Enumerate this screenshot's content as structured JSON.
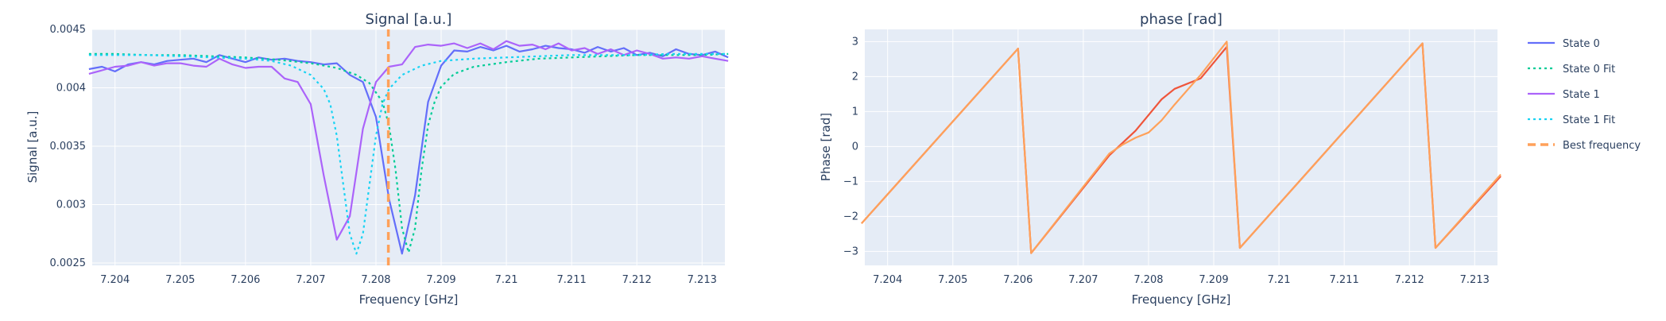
{
  "chart_data": [
    {
      "type": "line",
      "title": "Signal [a.u.]",
      "xlabel": "Frequency [GHz]",
      "ylabel": "Signal [a.u.]",
      "xlim": [
        7.20365,
        7.21335
      ],
      "ylim": [
        0.00248,
        0.0045
      ],
      "xticks": [
        7.204,
        7.205,
        7.206,
        7.207,
        7.208,
        7.209,
        7.21,
        7.211,
        7.212,
        7.213
      ],
      "xtick_labels": [
        "7.204",
        "7.205",
        "7.206",
        "7.207",
        "7.208",
        "7.209",
        "7.21",
        "7.211",
        "7.212",
        "7.213"
      ],
      "yticks": [
        0.0025,
        0.003,
        0.0035,
        0.004,
        0.0045
      ],
      "ytick_labels": [
        "0.0025",
        "0.003",
        "0.0035",
        "0.004",
        "0.0045"
      ],
      "grid": true,
      "series": [
        {
          "name": "State 0",
          "color": "#636efa",
          "style": "solid",
          "x": [
            7.2036,
            7.2038,
            7.204,
            7.2042,
            7.2044,
            7.2046,
            7.2048,
            7.205,
            7.2052,
            7.2054,
            7.2056,
            7.2058,
            7.206,
            7.2062,
            7.2064,
            7.2066,
            7.2068,
            7.207,
            7.2072,
            7.2074,
            7.2076,
            7.2078,
            7.208,
            7.2082,
            7.2084,
            7.2086,
            7.2088,
            7.209,
            7.2092,
            7.2094,
            7.2096,
            7.2098,
            7.21,
            7.2102,
            7.2104,
            7.2106,
            7.2108,
            7.211,
            7.2112,
            7.2114,
            7.2116,
            7.2118,
            7.212,
            7.2122,
            7.2124,
            7.2126,
            7.2128,
            7.213,
            7.2132,
            7.2134
          ],
          "y": [
            0.00416,
            0.00418,
            0.00414,
            0.0042,
            0.00422,
            0.0042,
            0.00423,
            0.00424,
            0.00425,
            0.00422,
            0.00428,
            0.00425,
            0.00422,
            0.00426,
            0.00424,
            0.00425,
            0.00423,
            0.00422,
            0.0042,
            0.00421,
            0.00411,
            0.00405,
            0.00375,
            0.00305,
            0.00258,
            0.00308,
            0.00388,
            0.00419,
            0.00432,
            0.00431,
            0.00435,
            0.00432,
            0.00436,
            0.00431,
            0.00433,
            0.00436,
            0.00434,
            0.00433,
            0.0043,
            0.00435,
            0.00431,
            0.00434,
            0.00428,
            0.0043,
            0.00427,
            0.00433,
            0.00429,
            0.00428,
            0.00431,
            0.00426
          ]
        },
        {
          "name": "State 0 Fit",
          "color": "#00cc96",
          "style": "dot",
          "x": [
            7.2036,
            7.204,
            7.2045,
            7.205,
            7.2055,
            7.206,
            7.2065,
            7.207,
            7.2074,
            7.2077,
            7.2079,
            7.2081,
            7.2082,
            7.2083,
            7.2084,
            7.2085,
            7.2086,
            7.2087,
            7.2088,
            7.2089,
            7.209,
            7.2092,
            7.2095,
            7.21,
            7.2105,
            7.211,
            7.2115,
            7.212,
            7.2125,
            7.213,
            7.2134
          ],
          "y": [
            0.00429,
            0.00429,
            0.00428,
            0.00428,
            0.00427,
            0.00426,
            0.00424,
            0.00421,
            0.00417,
            0.00411,
            0.00404,
            0.00388,
            0.00368,
            0.0033,
            0.0028,
            0.00259,
            0.0028,
            0.0033,
            0.00368,
            0.00388,
            0.00401,
            0.00412,
            0.00418,
            0.00422,
            0.00425,
            0.00426,
            0.00427,
            0.00428,
            0.00428,
            0.00428,
            0.00429
          ]
        },
        {
          "name": "State 1",
          "color": "#ab63fa",
          "style": "solid",
          "x": [
            7.2036,
            7.2038,
            7.204,
            7.2042,
            7.2044,
            7.2046,
            7.2048,
            7.205,
            7.2052,
            7.2054,
            7.2056,
            7.2058,
            7.206,
            7.2062,
            7.2064,
            7.2066,
            7.2068,
            7.207,
            7.2072,
            7.2074,
            7.2076,
            7.2078,
            7.208,
            7.2082,
            7.2084,
            7.2086,
            7.2088,
            7.209,
            7.2092,
            7.2094,
            7.2096,
            7.2098,
            7.21,
            7.2102,
            7.2104,
            7.2106,
            7.2108,
            7.211,
            7.2112,
            7.2114,
            7.2116,
            7.2118,
            7.212,
            7.2122,
            7.2124,
            7.2126,
            7.2128,
            7.213,
            7.2132,
            7.2134
          ],
          "y": [
            0.00412,
            0.00415,
            0.00418,
            0.00419,
            0.00422,
            0.00419,
            0.00421,
            0.00421,
            0.00419,
            0.00418,
            0.00425,
            0.0042,
            0.00417,
            0.00418,
            0.00418,
            0.00408,
            0.00405,
            0.00386,
            0.00325,
            0.0027,
            0.0029,
            0.00365,
            0.00405,
            0.00418,
            0.0042,
            0.00435,
            0.00437,
            0.00436,
            0.00438,
            0.00434,
            0.00438,
            0.00433,
            0.0044,
            0.00436,
            0.00437,
            0.00433,
            0.00438,
            0.00432,
            0.00434,
            0.00429,
            0.00433,
            0.00428,
            0.00432,
            0.00429,
            0.00425,
            0.00426,
            0.00425,
            0.00427,
            0.00425,
            0.00423
          ]
        },
        {
          "name": "State 1 Fit",
          "color": "#19d3f3",
          "style": "dot",
          "x": [
            7.2036,
            7.204,
            7.2045,
            7.205,
            7.2055,
            7.206,
            7.2064,
            7.2067,
            7.207,
            7.2072,
            7.2073,
            7.2074,
            7.2075,
            7.2076,
            7.2077,
            7.2078,
            7.2079,
            7.208,
            7.2081,
            7.2082,
            7.2084,
            7.2087,
            7.209,
            7.2095,
            7.21,
            7.2105,
            7.211,
            7.2115,
            7.212,
            7.2125,
            7.213,
            7.2134
          ],
          "y": [
            0.00428,
            0.00428,
            0.00428,
            0.00427,
            0.00426,
            0.00425,
            0.00423,
            0.00419,
            0.00411,
            0.00399,
            0.00386,
            0.00359,
            0.00317,
            0.00275,
            0.00258,
            0.00275,
            0.00317,
            0.00359,
            0.00386,
            0.00399,
            0.00411,
            0.00419,
            0.00423,
            0.00425,
            0.00426,
            0.00427,
            0.00428,
            0.00428,
            0.00428,
            0.00429,
            0.00429,
            0.00429
          ]
        },
        {
          "name": "Best frequency",
          "color": "#ffa15a",
          "style": "dash",
          "x": [
            7.20819,
            7.20819
          ],
          "y": [
            0.00248,
            0.0045
          ]
        }
      ]
    },
    {
      "type": "line",
      "title": "phase [rad]",
      "xlabel": "Frequency [GHz]",
      "ylabel": "Phase [rad]",
      "xlim": [
        7.20365,
        7.21335
      ],
      "ylim": [
        -3.4,
        3.35
      ],
      "xticks": [
        7.204,
        7.205,
        7.206,
        7.207,
        7.208,
        7.209,
        7.21,
        7.211,
        7.212,
        7.213
      ],
      "xtick_labels": [
        "7.204",
        "7.205",
        "7.206",
        "7.207",
        "7.208",
        "7.209",
        "7.21",
        "7.211",
        "7.212",
        "7.213"
      ],
      "yticks": [
        -3,
        -2,
        -1,
        0,
        1,
        2,
        3
      ],
      "ytick_labels": [
        "−3",
        "−2",
        "−1",
        "0",
        "1",
        "2",
        "3"
      ],
      "grid": true,
      "series": [
        {
          "name": "State 0",
          "color": "#ef553b",
          "style": "solid",
          "x": [
            7.2036,
            7.206,
            7.2062,
            7.2074,
            7.2078,
            7.208,
            7.2082,
            7.2084,
            7.2088,
            7.2092,
            7.2094,
            7.2122,
            7.2124,
            7.2134
          ],
          "y": [
            -2.2,
            2.8,
            -3.05,
            -0.25,
            0.45,
            0.9,
            1.35,
            1.65,
            1.95,
            2.85,
            -2.9,
            2.95,
            -2.9,
            -0.85
          ]
        },
        {
          "name": "State 1",
          "color": "#ffa15a",
          "style": "solid",
          "x": [
            7.2036,
            7.206,
            7.2062,
            7.2074,
            7.2076,
            7.2078,
            7.208,
            7.2082,
            7.2084,
            7.2088,
            7.2092,
            7.2094,
            7.2122,
            7.2124,
            7.2134
          ],
          "y": [
            -2.2,
            2.8,
            -3.05,
            -0.2,
            0.05,
            0.25,
            0.4,
            0.75,
            1.2,
            2.05,
            3.0,
            -2.9,
            2.95,
            -2.9,
            -0.8
          ]
        }
      ]
    }
  ],
  "legend": {
    "placement": "right",
    "items": [
      {
        "label": "State 0",
        "color": "#636efa",
        "style": "solid"
      },
      {
        "label": "State 0 Fit",
        "color": "#00cc96",
        "style": "dot"
      },
      {
        "label": "State 1",
        "color": "#ab63fa",
        "style": "solid"
      },
      {
        "label": "State 1 Fit",
        "color": "#19d3f3",
        "style": "dot"
      },
      {
        "label": "Best frequency",
        "color": "#ffa15a",
        "style": "dash"
      }
    ]
  },
  "colors": {
    "plot_bg": "#e5ecf6",
    "grid": "#ffffff",
    "text": "#2a3f5f"
  }
}
